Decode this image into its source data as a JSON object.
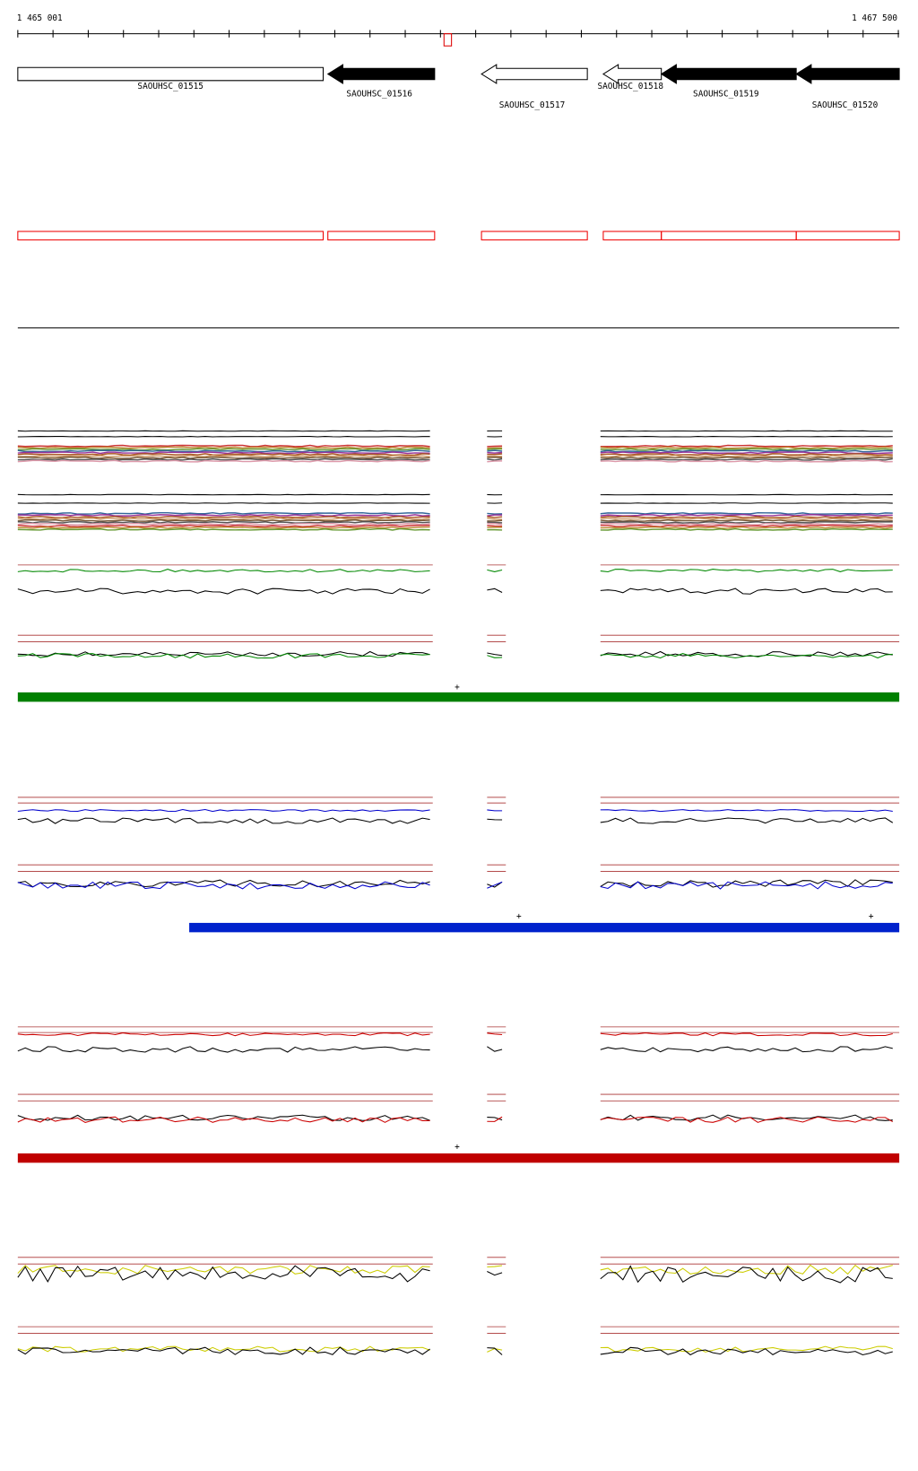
{
  "header": {
    "start": "1 465 001",
    "end": "1 467 500"
  },
  "genes": [
    {
      "label": "SAOUHSC_01515"
    },
    {
      "label": "SAOUHSC_01516"
    },
    {
      "label": "SAOUHSC_01517"
    },
    {
      "label": "SAOUHSC_01518"
    },
    {
      "label": "SAOUHSC_01519"
    },
    {
      "label": "SAOUHSC_01520"
    }
  ],
  "strand_marks": [
    "+",
    "+",
    "+",
    "+"
  ]
}
